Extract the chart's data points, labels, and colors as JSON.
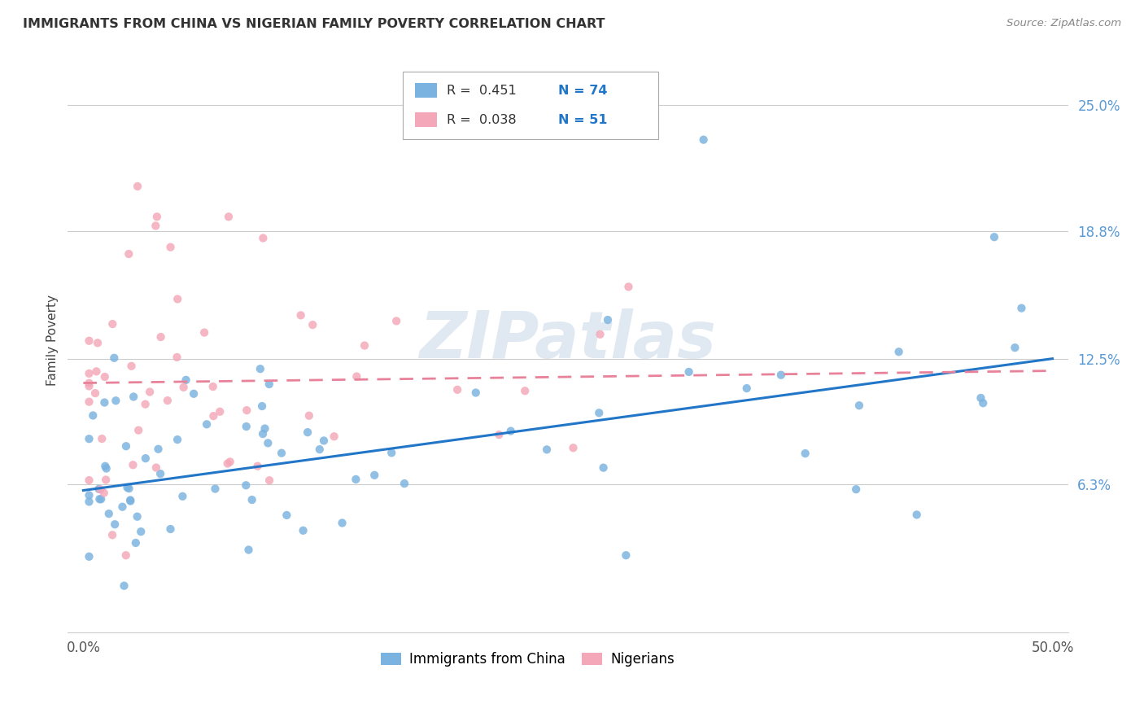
{
  "title": "IMMIGRANTS FROM CHINA VS NIGERIAN FAMILY POVERTY CORRELATION CHART",
  "source": "Source: ZipAtlas.com",
  "ylabel": "Family Poverty",
  "yticks": [
    "6.3%",
    "12.5%",
    "18.8%",
    "25.0%"
  ],
  "ytick_vals": [
    0.063,
    0.125,
    0.188,
    0.25
  ],
  "xlim": [
    0.0,
    0.5
  ],
  "ylim": [
    0.0,
    0.275
  ],
  "china_color": "#7ab3e0",
  "nigeria_color": "#f4a7b9",
  "china_line_color": "#2176C7",
  "nigeria_line_color": "#f4a7b9",
  "watermark_color": "#d0dce8",
  "china_R": 0.451,
  "nigeria_R": 0.038,
  "china_N": 74,
  "nigeria_N": 51,
  "china_line_y0": 0.06,
  "china_line_y1": 0.125,
  "nigeria_line_y0": 0.113,
  "nigeria_line_y1": 0.119
}
